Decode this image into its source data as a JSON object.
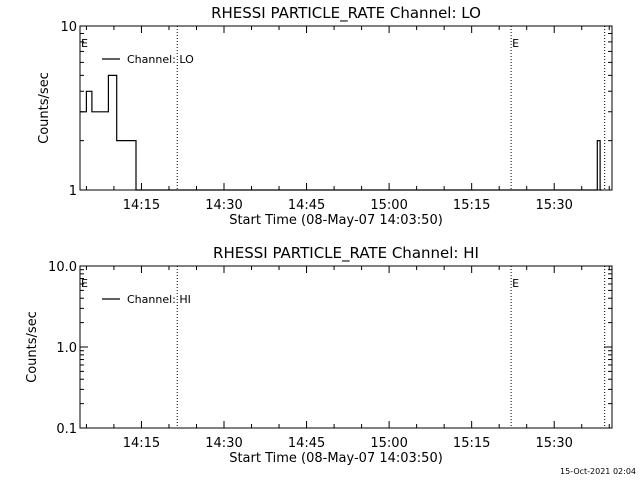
{
  "chart_data": [
    {
      "type": "line",
      "title": "RHESSI PARTICLE_RATE Channel: LO",
      "xlabel": "Start Time (08-May-07 14:03:50)",
      "ylabel": "Counts/sec",
      "y_scale": "log",
      "ylim": [
        1,
        10
      ],
      "ytick_labels": [
        "10",
        "1"
      ],
      "xlim": [
        "14:03:50",
        "15:40:30"
      ],
      "xtick_labels": [
        "14:15",
        "14:30",
        "14:45",
        "15:00",
        "15:15",
        "15:30"
      ],
      "legend": {
        "position": "top-left",
        "entries": [
          "Channel: LO"
        ]
      },
      "vertical_markers": [
        {
          "x": "14:03:50",
          "label": "E"
        },
        {
          "x": "14:21:30",
          "label": ""
        },
        {
          "x": "15:22:10",
          "label": "E"
        },
        {
          "x": "15:39:10",
          "label": ""
        }
      ],
      "series": [
        {
          "name": "Channel: LO",
          "x": [
            "14:03:50",
            "14:05:00",
            "14:05:00",
            "14:06:00",
            "14:06:00",
            "14:07:00",
            "14:07:00",
            "14:09:00",
            "14:09:00",
            "14:10:30",
            "14:10:30",
            "14:12:00",
            "14:12:00",
            "14:14:00",
            "14:14:00",
            "15:37:50",
            "15:37:50",
            "15:38:20",
            "15:38:20",
            "15:38:40"
          ],
          "y": [
            3,
            3,
            4,
            4,
            3,
            3,
            3,
            3,
            5,
            5,
            2,
            2,
            2,
            2,
            1,
            1,
            2,
            2,
            1,
            1
          ]
        }
      ]
    },
    {
      "type": "line",
      "title": "RHESSI PARTICLE_RATE Channel: HI",
      "xlabel": "Start Time (08-May-07 14:03:50)",
      "ylabel": "Counts/sec",
      "y_scale": "log",
      "ylim": [
        0.1,
        10
      ],
      "ytick_labels": [
        "10.0",
        "1.0",
        "0.1"
      ],
      "xlim": [
        "14:03:50",
        "15:40:30"
      ],
      "xtick_labels": [
        "14:15",
        "14:30",
        "14:45",
        "15:00",
        "15:15",
        "15:30"
      ],
      "legend": {
        "position": "top-left",
        "entries": [
          "Channel: HI"
        ]
      },
      "vertical_markers": [
        {
          "x": "14:03:50",
          "label": "E"
        },
        {
          "x": "14:21:30",
          "label": ""
        },
        {
          "x": "15:22:10",
          "label": "E"
        },
        {
          "x": "15:39:10",
          "label": ""
        }
      ],
      "series": [
        {
          "name": "Channel: HI",
          "x": [],
          "y": []
        }
      ]
    }
  ],
  "footer": {
    "timestamp": "15-Oct-2021 02:04"
  }
}
